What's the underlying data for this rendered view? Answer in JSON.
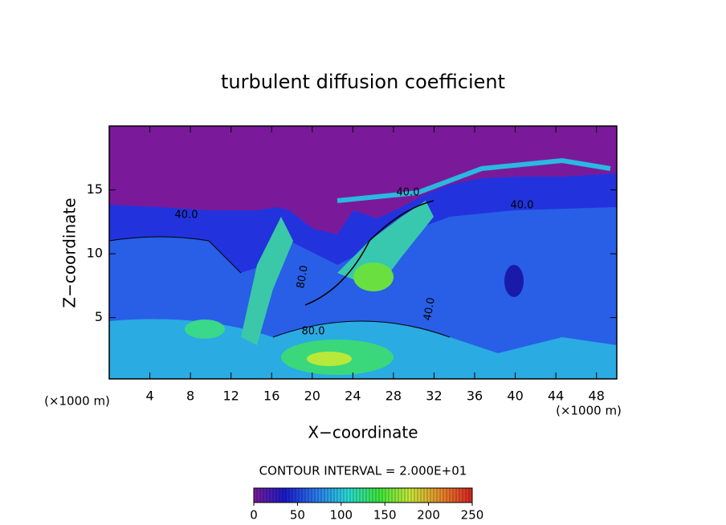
{
  "chart_data": {
    "type": "contour",
    "title": "turbulent diffusion coefficient",
    "x_label": "X−coordinate",
    "y_label": "Z−coordinate",
    "x_unit": "(×1000 m)",
    "y_unit": "(×1000 m)",
    "xlim": [
      0,
      50
    ],
    "xticks": [
      4,
      8,
      12,
      16,
      20,
      24,
      28,
      32,
      36,
      40,
      44,
      48
    ],
    "ylim": [
      0.2,
      20
    ],
    "yticks": [
      5,
      10,
      15
    ],
    "contour_interval": "CONTOUR INTERVAL = 2.000E+01",
    "colorbar": {
      "lim": [
        0,
        250
      ],
      "ticks": [
        0,
        50,
        100,
        150,
        200,
        250
      ],
      "colors": [
        "#7a1a9a",
        "#1a1acc",
        "#2a7aee",
        "#2adada",
        "#3ae83a",
        "#c8e83a",
        "#e88a2a",
        "#d82020"
      ]
    },
    "contour_labels": [
      "40.0",
      "40.0",
      "40.0",
      "40.0",
      "80.0",
      "80.0"
    ]
  }
}
